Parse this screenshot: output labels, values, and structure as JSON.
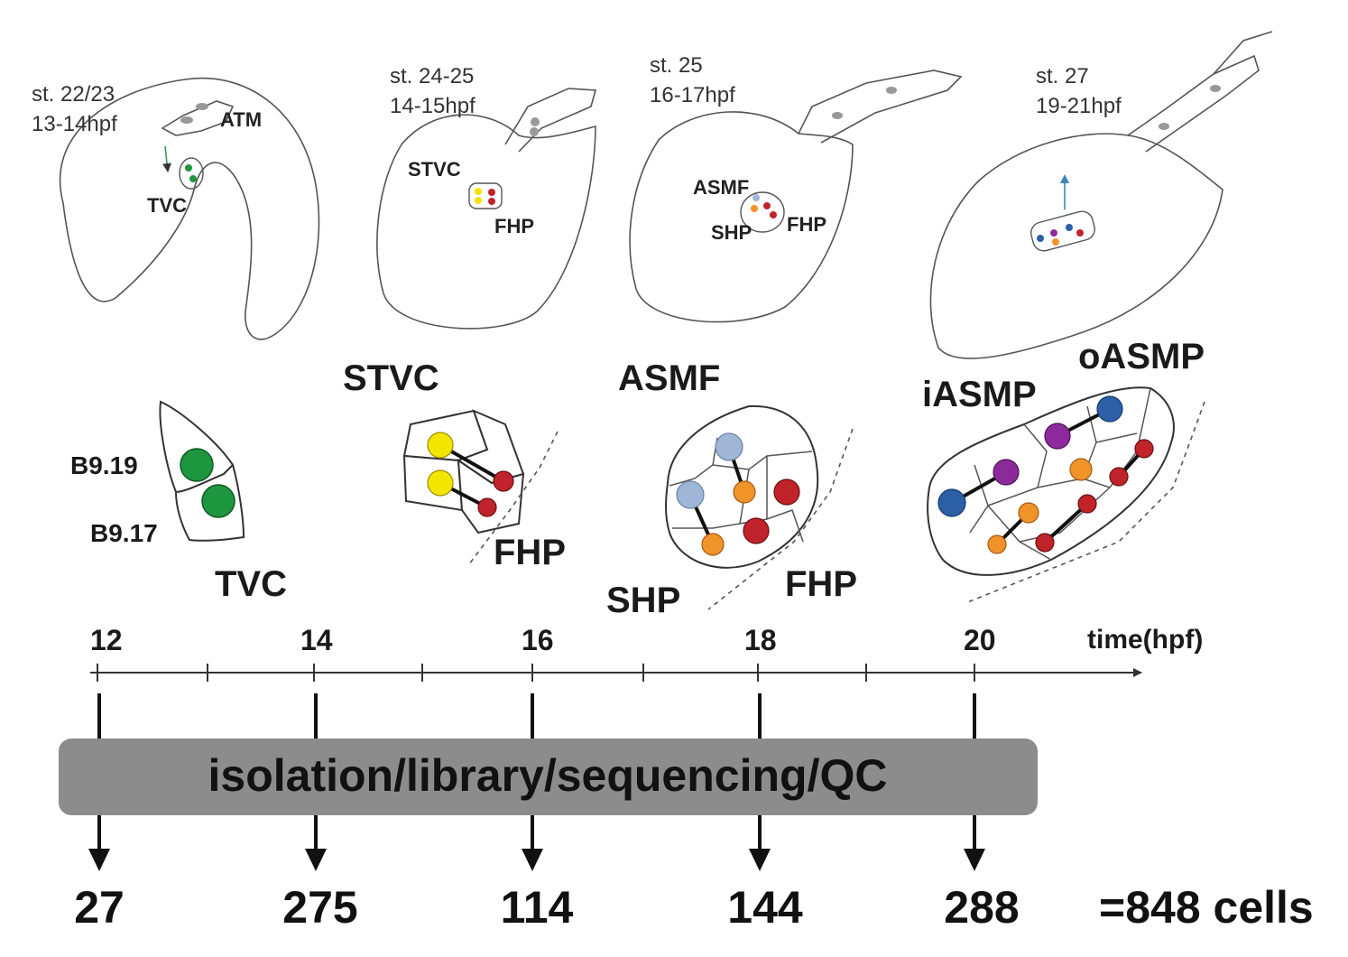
{
  "embryos": [
    {
      "stage": "st. 22/23",
      "time": "13-14hpf",
      "labels": [
        "ATM",
        "TVC"
      ]
    },
    {
      "stage": "st. 24-25",
      "time": "14-15hpf",
      "labels": [
        "STVC",
        "FHP"
      ]
    },
    {
      "stage": "st. 25",
      "time": "16-17hpf",
      "labels": [
        "ASMF",
        "SHP",
        "FHP"
      ]
    },
    {
      "stage": "st. 27",
      "time": "19-21hpf",
      "labels": []
    }
  ],
  "clusters": {
    "tvc": {
      "title": "TVC",
      "cells": [
        "B9.19",
        "B9.17"
      ]
    },
    "stvc": {
      "title": "STVC",
      "sub": "FHP"
    },
    "asmf": {
      "title": "ASMF",
      "sub1": "SHP",
      "sub2": "FHP"
    },
    "asmp": {
      "title1": "iASMP",
      "title2": "oASMP"
    }
  },
  "timeline": {
    "ticks": [
      "12",
      "14",
      "16",
      "18",
      "20"
    ],
    "axis_label": "time(hpf)",
    "pipeline_label": "isolation/library/sequencing/QC",
    "counts": [
      "27",
      "275",
      "114",
      "144",
      "288"
    ],
    "total": "=848 cells"
  },
  "colors": {
    "tvc_green": "#1e9640",
    "stvc_yellow": "#f2e600",
    "fhp_red": "#c0242a",
    "shp_orange": "#f0942a",
    "asmf_blue": "#9fb6d6",
    "asmp_blue": "#2b5fa6",
    "asmp_purple": "#8c2a9c",
    "pipeline_gray": "#8c8c8c"
  }
}
